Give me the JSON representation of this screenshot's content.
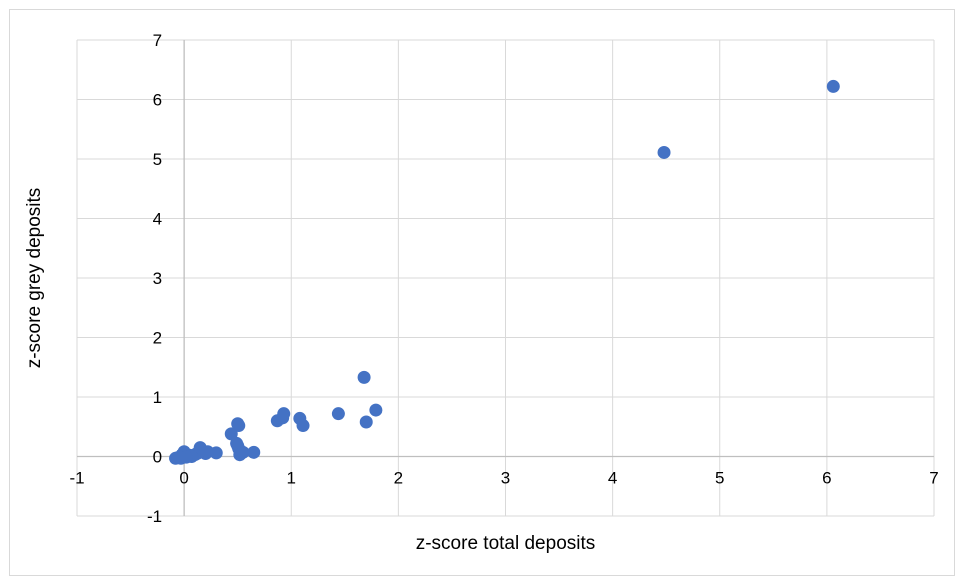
{
  "chart_data": {
    "type": "scatter",
    "title": "",
    "xlabel": "z-score total deposits",
    "ylabel": "z-score grey deposits",
    "xlim": [
      -1,
      7
    ],
    "ylim": [
      -1,
      7
    ],
    "xticks": [
      -1,
      0,
      1,
      2,
      3,
      4,
      5,
      6,
      7
    ],
    "yticks": [
      -1,
      0,
      1,
      2,
      3,
      4,
      5,
      6,
      7
    ],
    "xtick_labels": [
      "-1",
      "0",
      "1",
      "2",
      "3",
      "4",
      "5",
      "6",
      "7"
    ],
    "ytick_labels": [
      "-1",
      "0",
      "1",
      "2",
      "3",
      "4",
      "5",
      "6",
      "7"
    ],
    "grid": true,
    "marker_color": "#4472c4",
    "series": [
      {
        "x": [
          6.06,
          4.48,
          1.68,
          1.79,
          1.7,
          1.44,
          1.08,
          1.11,
          0.93,
          0.92,
          0.87,
          0.5,
          0.51,
          0.49,
          0.44,
          0.51,
          0.5,
          0.52,
          0.55,
          0.65,
          0.3,
          0.2,
          0.22,
          0.15,
          0.16,
          0.12,
          0.1,
          0.05,
          0.03,
          0.0,
          -0.02,
          -0.06,
          -0.08,
          0.07,
          0.02,
          -0.03
        ],
        "y": [
          6.22,
          5.11,
          1.33,
          0.78,
          0.58,
          0.72,
          0.64,
          0.52,
          0.72,
          0.65,
          0.6,
          0.55,
          0.52,
          0.22,
          0.38,
          0.13,
          0.18,
          0.03,
          0.07,
          0.07,
          0.06,
          0.05,
          0.08,
          0.15,
          0.1,
          0.05,
          0.03,
          0.02,
          0.0,
          0.08,
          0.03,
          -0.02,
          -0.03,
          0.0,
          -0.01,
          -0.03
        ]
      }
    ]
  }
}
